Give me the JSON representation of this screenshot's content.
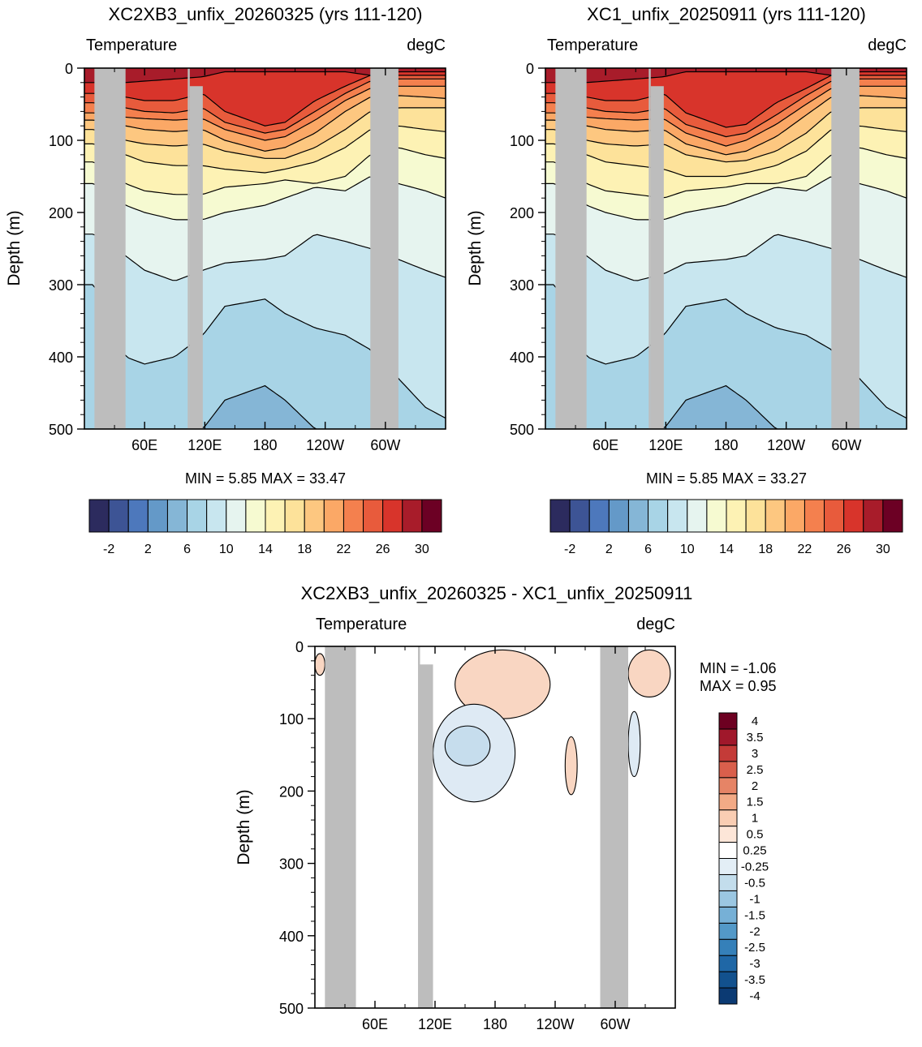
{
  "colors": {
    "land": "#bdbdbd",
    "temp_palette": [
      "#2c2b5e",
      "#3d5495",
      "#4d78bc",
      "#6499c8",
      "#85b6d6",
      "#a8d4e6",
      "#c8e6ef",
      "#e6f4ef",
      "#f6fad1",
      "#fdf2b4",
      "#fde29a",
      "#fdc780",
      "#fba866",
      "#f4804e",
      "#e85b3c",
      "#d8342b",
      "#a81c2a",
      "#6c0024"
    ],
    "diff_palette": [
      "#0b3a73",
      "#12518e",
      "#1f67a6",
      "#3580b9",
      "#5399c8",
      "#76b0d6",
      "#9bc7e2",
      "#c3ddec",
      "#e3eef6",
      "#ffffff",
      "#fde6d8",
      "#f9cdb3",
      "#f3aa86",
      "#e68466",
      "#d95f4c",
      "#c43b38",
      "#a0182b",
      "#6d0021"
    ]
  },
  "panels": [
    {
      "title": "XC2XB3_unfix_20260325 (yrs 111-120)",
      "left_label": "Temperature",
      "right_label": "degC",
      "ylabel": "Depth (m)",
      "minmax": "MIN =   5.85  MAX =  33.47"
    },
    {
      "title": "XC1_unfix_20250911 (yrs 111-120)",
      "left_label": "Temperature",
      "right_label": "degC",
      "ylabel": "Depth (m)",
      "minmax": "MIN =   5.85  MAX =  33.27"
    },
    {
      "title": "XC2XB3_unfix_20260325 - XC1_unfix_20250911",
      "left_label": "Temperature",
      "right_label": "degC",
      "ylabel": "Depth (m)",
      "min_text": "MIN =  -1.06",
      "max_text": "MAX =    0.95"
    }
  ],
  "chart_data": [
    {
      "type": "heatmap",
      "title": "XC2XB3_unfix_20260325 (yrs 111-120)",
      "xlabel": "",
      "ylabel": "Depth (m)",
      "x_ticks": [
        "60E",
        "120E",
        "180",
        "120W",
        "60W"
      ],
      "x_tick_values": [
        60,
        120,
        180,
        240,
        300
      ],
      "xlim": [
        0,
        360
      ],
      "y_ticks": [
        0,
        100,
        200,
        300,
        400,
        500
      ],
      "ylim": [
        500,
        0
      ],
      "colorbar_levels": [
        -4,
        -2,
        0,
        2,
        4,
        6,
        8,
        10,
        12,
        14,
        16,
        18,
        20,
        22,
        24,
        26,
        28,
        30,
        32
      ],
      "colorbar_labels": [
        "-2",
        "2",
        "6",
        "10",
        "14",
        "18",
        "22",
        "26",
        "30"
      ],
      "land_lon_ranges": [
        [
          10,
          41
        ],
        [
          103,
          105
        ],
        [
          105,
          118
        ],
        [
          285,
          313
        ]
      ],
      "isotherm_depths": {
        "lon": [
          0,
          10,
          41,
          60,
          90,
          118,
          140,
          180,
          200,
          230,
          260,
          285,
          313,
          340,
          360
        ],
        "levels": [
          {
            "t": 28,
            "d": [
              20,
              20,
              20,
              18,
              15,
              12,
              5,
              5,
              5,
              5,
              5,
              10,
              5,
              5,
              5
            ]
          },
          {
            "t": 26,
            "d": [
              35,
              35,
              40,
              45,
              45,
              35,
              60,
              80,
              75,
              45,
              25,
              10,
              10,
              10,
              10
            ]
          },
          {
            "t": 24,
            "d": [
              48,
              48,
              55,
              60,
              62,
              55,
              75,
              90,
              85,
              60,
              35,
              18,
              15,
              15,
              15
            ]
          },
          {
            "t": 22,
            "d": [
              62,
              62,
              68,
              70,
              72,
              70,
              85,
              100,
              95,
              72,
              45,
              28,
              25,
              25,
              25
            ]
          },
          {
            "t": 20,
            "d": [
              72,
              72,
              80,
              85,
              88,
              85,
              100,
              115,
              110,
              90,
              60,
              40,
              38,
              40,
              42
            ]
          },
          {
            "t": 18,
            "d": [
              85,
              85,
              100,
              105,
              108,
              105,
              115,
              125,
              125,
              110,
              85,
              60,
              55,
              55,
              55
            ]
          },
          {
            "t": 16,
            "d": [
              105,
              105,
              120,
              130,
              135,
              135,
              140,
              145,
              140,
              130,
              110,
              85,
              80,
              85,
              88
            ]
          },
          {
            "t": 14,
            "d": [
              130,
              130,
              160,
              170,
              175,
              175,
              165,
              160,
              155,
              160,
              150,
              120,
              110,
              120,
              125
            ]
          },
          {
            "t": 12,
            "d": [
              160,
              160,
              190,
              200,
              210,
              210,
              200,
              190,
              180,
              165,
              170,
              150,
              160,
              170,
              180
            ]
          },
          {
            "t": 10,
            "d": [
              230,
              230,
              260,
              280,
              295,
              280,
              270,
              265,
              260,
              230,
              240,
              250,
              265,
              280,
              290
            ]
          },
          {
            "t": 8,
            "d": [
              300,
              300,
              400,
              410,
              400,
              370,
              330,
              320,
              340,
              360,
              370,
              390,
              430,
              470,
              485
            ]
          },
          {
            "t": 6,
            "d": [
              500,
              500,
              500,
              500,
              500,
              500,
              460,
              440,
              460,
              500,
              510,
              510,
              510,
              510,
              510
            ]
          }
        ]
      }
    },
    {
      "type": "heatmap",
      "title": "XC1_unfix_20250911 (yrs 111-120)",
      "xlabel": "",
      "ylabel": "Depth (m)",
      "x_ticks": [
        "60E",
        "120E",
        "180",
        "120W",
        "60W"
      ],
      "x_tick_values": [
        60,
        120,
        180,
        240,
        300
      ],
      "xlim": [
        0,
        360
      ],
      "y_ticks": [
        0,
        100,
        200,
        300,
        400,
        500
      ],
      "ylim": [
        500,
        0
      ],
      "colorbar_levels": [
        -4,
        -2,
        0,
        2,
        4,
        6,
        8,
        10,
        12,
        14,
        16,
        18,
        20,
        22,
        24,
        26,
        28,
        30,
        32
      ],
      "colorbar_labels": [
        "-2",
        "2",
        "6",
        "10",
        "14",
        "18",
        "22",
        "26",
        "30"
      ],
      "land_lon_ranges": [
        [
          10,
          41
        ],
        [
          103,
          105
        ],
        [
          105,
          118
        ],
        [
          285,
          313
        ]
      ],
      "isotherm_depths": {
        "lon": [
          0,
          10,
          41,
          60,
          90,
          118,
          140,
          180,
          200,
          230,
          260,
          285,
          313,
          340,
          360
        ],
        "levels": [
          {
            "t": 28,
            "d": [
              20,
              20,
              20,
              18,
              15,
              12,
              5,
              5,
              5,
              5,
              5,
              10,
              5,
              5,
              5
            ]
          },
          {
            "t": 26,
            "d": [
              35,
              35,
              40,
              45,
              45,
              35,
              62,
              82,
              78,
              48,
              28,
              10,
              10,
              10,
              10
            ]
          },
          {
            "t": 24,
            "d": [
              48,
              48,
              55,
              60,
              62,
              55,
              78,
              95,
              90,
              65,
              38,
              18,
              15,
              15,
              15
            ]
          },
          {
            "t": 22,
            "d": [
              62,
              62,
              68,
              70,
              72,
              70,
              90,
              108,
              100,
              78,
              50,
              28,
              25,
              25,
              25
            ]
          },
          {
            "t": 20,
            "d": [
              72,
              72,
              80,
              85,
              88,
              85,
              105,
              120,
              115,
              95,
              65,
              40,
              38,
              40,
              42
            ]
          },
          {
            "t": 18,
            "d": [
              85,
              85,
              100,
              105,
              108,
              105,
              120,
              130,
              128,
              115,
              90,
              60,
              55,
              55,
              55
            ]
          },
          {
            "t": 16,
            "d": [
              105,
              105,
              120,
              130,
              135,
              140,
              150,
              150,
              145,
              135,
              115,
              85,
              80,
              85,
              88
            ]
          },
          {
            "t": 14,
            "d": [
              130,
              130,
              160,
              170,
              175,
              180,
              170,
              165,
              160,
              160,
              150,
              120,
              110,
              120,
              125
            ]
          },
          {
            "t": 12,
            "d": [
              160,
              160,
              190,
              200,
              210,
              210,
              200,
              190,
              180,
              165,
              170,
              150,
              160,
              170,
              180
            ]
          },
          {
            "t": 10,
            "d": [
              230,
              230,
              260,
              280,
              295,
              285,
              270,
              265,
              260,
              230,
              240,
              250,
              265,
              280,
              290
            ]
          },
          {
            "t": 8,
            "d": [
              300,
              300,
              400,
              410,
              400,
              370,
              330,
              320,
              340,
              360,
              370,
              390,
              430,
              470,
              485
            ]
          },
          {
            "t": 6,
            "d": [
              500,
              500,
              500,
              500,
              500,
              500,
              460,
              440,
              460,
              500,
              510,
              510,
              510,
              510,
              510
            ]
          }
        ]
      }
    },
    {
      "type": "heatmap",
      "title": "XC2XB3_unfix_20260325 - XC1_unfix_20250911",
      "xlabel": "",
      "ylabel": "Depth (m)",
      "x_ticks": [
        "60E",
        "120E",
        "180",
        "120W",
        "60W"
      ],
      "x_tick_values": [
        60,
        120,
        180,
        240,
        300
      ],
      "xlim": [
        0,
        360
      ],
      "y_ticks": [
        0,
        100,
        200,
        300,
        400,
        500
      ],
      "ylim": [
        500,
        0
      ],
      "colorbar_levels": [
        -4,
        -3.5,
        -3,
        -2.5,
        -2,
        -1.5,
        -1,
        -0.5,
        -0.25,
        0.25,
        0.5,
        1,
        1.5,
        2,
        2.5,
        3,
        3.5,
        4
      ],
      "colorbar_labels": [
        "-4",
        "-3.5",
        "-3",
        "-2.5",
        "-2",
        "-1.5",
        "-1",
        "-0.5",
        "-0.25",
        "0.25",
        "0.5",
        "1",
        "1.5",
        "2",
        "2.5",
        "3",
        "3.5",
        "4"
      ],
      "land_lon_ranges": [
        [
          10,
          41
        ],
        [
          103,
          105
        ],
        [
          105,
          118
        ],
        [
          285,
          313
        ]
      ],
      "anomalies": [
        {
          "sign": "positive",
          "value": 0.5,
          "lon_range": [
            140,
            235
          ],
          "depth_range": [
            5,
            100
          ]
        },
        {
          "sign": "positive",
          "value": 0.5,
          "lon_range": [
            250,
            262
          ],
          "depth_range": [
            125,
            205
          ]
        },
        {
          "sign": "positive",
          "value": 0.5,
          "lon_range": [
            0,
            10
          ],
          "depth_range": [
            10,
            40
          ]
        },
        {
          "sign": "positive",
          "value": 0.5,
          "lon_range": [
            313,
            355
          ],
          "depth_range": [
            5,
            70
          ]
        },
        {
          "sign": "negative",
          "value": -0.5,
          "lon_range": [
            118,
            200
          ],
          "depth_range": [
            80,
            215
          ]
        },
        {
          "sign": "negative",
          "value": -1,
          "lon_range": [
            130,
            175
          ],
          "depth_range": [
            110,
            165
          ]
        },
        {
          "sign": "negative",
          "value": -0.5,
          "lon_range": [
            313,
            325
          ],
          "depth_range": [
            90,
            180
          ]
        }
      ]
    }
  ]
}
